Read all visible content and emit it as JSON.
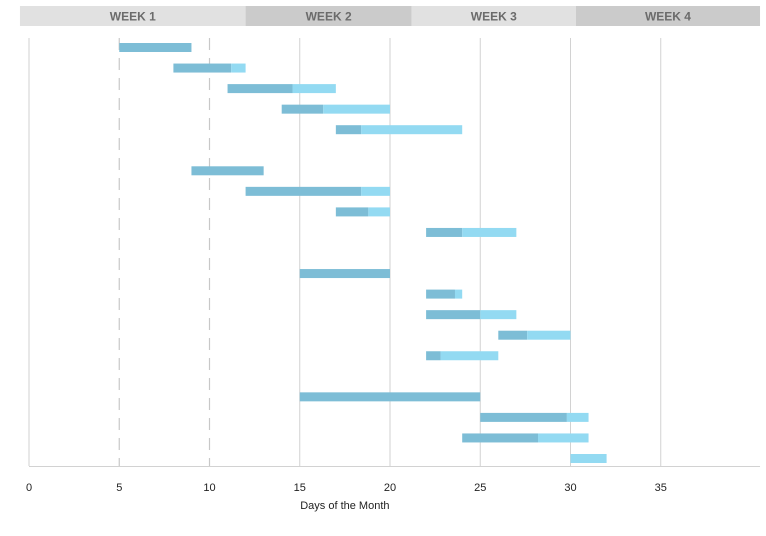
{
  "colors": {
    "done": "#7dbdd6",
    "remaining": "#93daf2",
    "week_a": "#e1e1e1",
    "week_b": "#cbcbcb",
    "grid": "#d2d2d2",
    "milestone": "#c8c8c8"
  },
  "chart_data": {
    "type": "bar",
    "orientation": "horizontal",
    "stacked": true,
    "xlabel": "Days of the Month",
    "ylabel": "",
    "xlim": [
      0,
      40.5
    ],
    "x_ticks": [
      0,
      5,
      10,
      15,
      20,
      25,
      30,
      35
    ],
    "grid": "vertical",
    "milestone_lines": [
      5,
      10
    ],
    "weeks": [
      {
        "label": "WEEK 1",
        "start": -0.5,
        "end": 12
      },
      {
        "label": "WEEK 2",
        "start": 12,
        "end": 21.2
      },
      {
        "label": "WEEK 3",
        "start": 21.2,
        "end": 30.3
      },
      {
        "label": "WEEK 4",
        "start": 30.3,
        "end": 40.5
      }
    ],
    "tasks": [
      {
        "start": 5,
        "done": 4,
        "remaining": 0
      },
      {
        "start": 8,
        "done": 3.2,
        "remaining": 0.8
      },
      {
        "start": 11,
        "done": 3.6,
        "remaining": 2.4
      },
      {
        "start": 14,
        "done": 2.3,
        "remaining": 3.7
      },
      {
        "start": 17,
        "done": 1.4,
        "remaining": 5.6
      },
      null,
      {
        "start": 9,
        "done": 4,
        "remaining": 0
      },
      {
        "start": 12,
        "done": 6.4,
        "remaining": 1.6
      },
      {
        "start": 17,
        "done": 1.8,
        "remaining": 1.2
      },
      {
        "start": 22,
        "done": 2,
        "remaining": 3
      },
      null,
      {
        "start": 15,
        "done": 5,
        "remaining": 0
      },
      {
        "start": 22,
        "done": 1.6,
        "remaining": 0.4
      },
      {
        "start": 22,
        "done": 3,
        "remaining": 2
      },
      {
        "start": 26,
        "done": 1.6,
        "remaining": 2.4
      },
      {
        "start": 22,
        "done": 0.8,
        "remaining": 3.2
      },
      null,
      {
        "start": 15,
        "done": 10,
        "remaining": 0
      },
      {
        "start": 25,
        "done": 4.8,
        "remaining": 1.2
      },
      {
        "start": 24,
        "done": 4.2,
        "remaining": 2.8
      },
      {
        "start": 30,
        "done": 0,
        "remaining": 2
      }
    ]
  }
}
